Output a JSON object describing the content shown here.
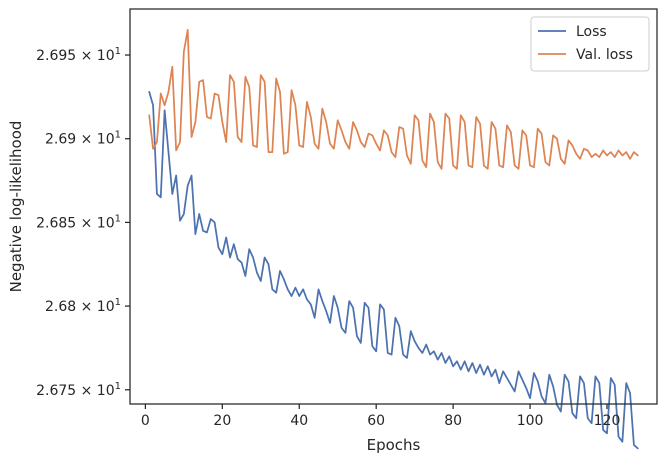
{
  "chart_data": {
    "type": "line",
    "title": "",
    "xlabel": "Epochs",
    "ylabel": "Negative log-likelihood",
    "xlim": [
      -4,
      133
    ],
    "ylim": [
      26.7415,
      26.9775
    ],
    "grid": false,
    "legend_position": "top-right",
    "x_ticks": [
      0,
      20,
      40,
      60,
      80,
      100,
      120
    ],
    "y_ticks": [
      {
        "value": 26.75,
        "mantissa": "2.675",
        "exponent": "1"
      },
      {
        "value": 26.8,
        "mantissa": "2.68",
        "exponent": "1"
      },
      {
        "value": 26.85,
        "mantissa": "2.685",
        "exponent": "1"
      },
      {
        "value": 26.9,
        "mantissa": "2.69",
        "exponent": "1"
      },
      {
        "value": 26.95,
        "mantissa": "2.695",
        "exponent": "1"
      }
    ],
    "series": [
      {
        "name": "Loss",
        "color": "#4c72b0",
        "x": [
          1,
          2,
          3,
          4,
          5,
          6,
          7,
          8,
          9,
          10,
          11,
          12,
          13,
          14,
          15,
          16,
          17,
          18,
          19,
          20,
          21,
          22,
          23,
          24,
          25,
          26,
          27,
          28,
          29,
          30,
          31,
          32,
          33,
          34,
          35,
          36,
          37,
          38,
          39,
          40,
          41,
          42,
          43,
          44,
          45,
          46,
          47,
          48,
          49,
          50,
          51,
          52,
          53,
          54,
          55,
          56,
          57,
          58,
          59,
          60,
          61,
          62,
          63,
          64,
          65,
          66,
          67,
          68,
          69,
          70,
          71,
          72,
          73,
          74,
          75,
          76,
          77,
          78,
          79,
          80,
          81,
          82,
          83,
          84,
          85,
          86,
          87,
          88,
          89,
          90,
          91,
          92,
          93,
          94,
          95,
          96,
          97,
          98,
          99,
          100,
          101,
          102,
          103,
          104,
          105,
          106,
          107,
          108,
          109,
          110,
          111,
          112,
          113,
          114,
          115,
          116,
          117,
          118,
          119,
          120,
          121,
          122,
          123,
          124,
          125,
          126,
          127,
          128
        ],
        "values": [
          26.928,
          26.92,
          26.867,
          26.865,
          26.917,
          26.892,
          26.867,
          26.878,
          26.851,
          26.855,
          26.872,
          26.878,
          26.843,
          26.855,
          26.845,
          26.844,
          26.852,
          26.85,
          26.835,
          26.831,
          26.841,
          26.829,
          26.837,
          26.828,
          26.826,
          26.818,
          26.834,
          26.829,
          26.82,
          26.815,
          26.829,
          26.825,
          26.81,
          26.808,
          26.821,
          26.816,
          26.81,
          26.806,
          26.811,
          26.806,
          26.81,
          26.804,
          26.801,
          26.793,
          26.81,
          26.803,
          26.797,
          26.79,
          26.806,
          26.799,
          26.787,
          26.784,
          26.803,
          26.799,
          26.782,
          26.778,
          26.802,
          26.799,
          26.776,
          26.773,
          26.801,
          26.798,
          26.772,
          26.771,
          26.793,
          26.788,
          26.771,
          26.769,
          26.785,
          26.779,
          26.775,
          26.772,
          26.777,
          26.771,
          26.773,
          26.768,
          26.772,
          26.766,
          26.77,
          26.764,
          26.767,
          26.762,
          26.767,
          26.761,
          26.766,
          26.76,
          26.765,
          26.759,
          26.764,
          26.758,
          26.762,
          26.754,
          26.761,
          26.757,
          26.753,
          26.749,
          26.761,
          26.756,
          26.751,
          26.745,
          26.76,
          26.755,
          26.746,
          26.742,
          26.759,
          26.752,
          26.741,
          26.737,
          26.759,
          26.755,
          26.736,
          26.733,
          26.758,
          26.754,
          26.733,
          26.73,
          26.758,
          26.754,
          26.726,
          26.724,
          26.757,
          26.753,
          26.722,
          26.719,
          26.754,
          26.748,
          26.717,
          26.715
        ]
      },
      {
        "name": "Val. loss",
        "color": "#dd8452",
        "x": [
          1,
          2,
          3,
          4,
          5,
          6,
          7,
          8,
          9,
          10,
          11,
          12,
          13,
          14,
          15,
          16,
          17,
          18,
          19,
          20,
          21,
          22,
          23,
          24,
          25,
          26,
          27,
          28,
          29,
          30,
          31,
          32,
          33,
          34,
          35,
          36,
          37,
          38,
          39,
          40,
          41,
          42,
          43,
          44,
          45,
          46,
          47,
          48,
          49,
          50,
          51,
          52,
          53,
          54,
          55,
          56,
          57,
          58,
          59,
          60,
          61,
          62,
          63,
          64,
          65,
          66,
          67,
          68,
          69,
          70,
          71,
          72,
          73,
          74,
          75,
          76,
          77,
          78,
          79,
          80,
          81,
          82,
          83,
          84,
          85,
          86,
          87,
          88,
          89,
          90,
          91,
          92,
          93,
          94,
          95,
          96,
          97,
          98,
          99,
          100,
          101,
          102,
          103,
          104,
          105,
          106,
          107,
          108,
          109,
          110,
          111,
          112,
          113,
          114,
          115,
          116,
          117,
          118,
          119,
          120,
          121,
          122,
          123,
          124,
          125,
          126,
          127,
          128
        ],
        "values": [
          26.914,
          26.894,
          26.898,
          26.927,
          26.92,
          26.928,
          26.943,
          26.893,
          26.898,
          26.952,
          26.965,
          26.901,
          26.91,
          26.934,
          26.935,
          26.913,
          26.912,
          26.927,
          26.926,
          26.91,
          26.898,
          26.938,
          26.934,
          26.901,
          26.898,
          26.937,
          26.931,
          26.896,
          26.895,
          26.938,
          26.934,
          26.892,
          26.892,
          26.936,
          26.928,
          26.891,
          26.892,
          26.929,
          26.92,
          26.896,
          26.895,
          26.922,
          26.913,
          26.897,
          26.894,
          26.918,
          26.91,
          26.897,
          26.894,
          26.911,
          26.905,
          26.898,
          26.894,
          26.91,
          26.905,
          26.898,
          26.895,
          26.903,
          26.902,
          26.897,
          26.893,
          26.905,
          26.902,
          26.892,
          26.889,
          26.907,
          26.906,
          26.89,
          26.885,
          26.914,
          26.911,
          26.887,
          26.883,
          26.915,
          26.91,
          26.886,
          26.882,
          26.915,
          26.912,
          26.884,
          26.882,
          26.914,
          26.91,
          26.884,
          26.883,
          26.913,
          26.909,
          26.884,
          26.882,
          26.91,
          26.906,
          26.884,
          26.883,
          26.908,
          26.904,
          26.884,
          26.882,
          26.905,
          26.902,
          26.884,
          26.883,
          26.906,
          26.903,
          26.886,
          26.884,
          26.902,
          26.9,
          26.888,
          26.885,
          26.899,
          26.896,
          26.891,
          26.888,
          26.894,
          26.893,
          26.889,
          26.891,
          26.889,
          26.893,
          26.89,
          26.892,
          26.889,
          26.893,
          26.89,
          26.892,
          26.888,
          26.892,
          26.89
        ]
      }
    ]
  }
}
